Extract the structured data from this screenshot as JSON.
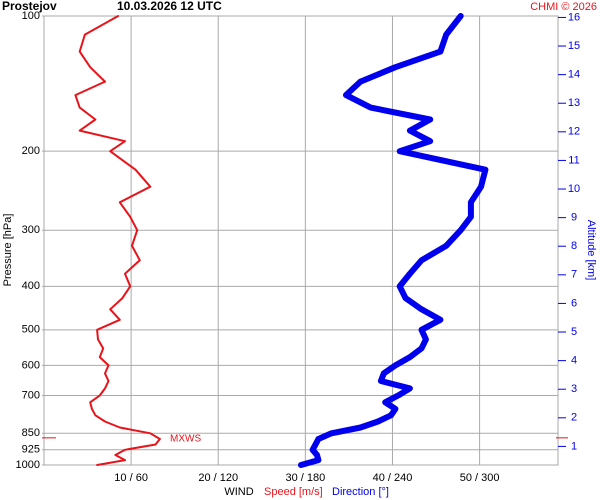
{
  "chart_data": {
    "type": "profile",
    "station": "Prostejov",
    "time": "10.03.2026 12 UTC",
    "credit": "CHMI © 2026",
    "ylabel": "Pressure [hPa]",
    "y2label": "Altitude [km]",
    "xlabel": "WIND",
    "ylim": [
      100,
      1000
    ],
    "ylog": true,
    "yticks": [
      100,
      200,
      300,
      400,
      500,
      600,
      700,
      850,
      925,
      1000
    ],
    "y2lim": [
      0.35,
      16.05
    ],
    "y2ticks": [
      1,
      2,
      3,
      4,
      5,
      6,
      7,
      8,
      9,
      10,
      11,
      12,
      13,
      14,
      15,
      16
    ],
    "xlim": [
      0,
      59
    ],
    "xticks": [
      {
        "value": 10,
        "label": "10 / 60"
      },
      {
        "value": 20,
        "label": "20 / 120"
      },
      {
        "value": 30,
        "label": "30 / 180"
      },
      {
        "value": 40,
        "label": "40 / 240"
      },
      {
        "value": 50,
        "label": "50 / 300"
      }
    ],
    "levels": [
      1000,
      975,
      950,
      925,
      900,
      875,
      850,
      825,
      800,
      775,
      750,
      725,
      700,
      675,
      650,
      625,
      600,
      575,
      550,
      525,
      500,
      475,
      450,
      425,
      400,
      375,
      350,
      325,
      300,
      280,
      260,
      240,
      220,
      200,
      190,
      180,
      170,
      160,
      150,
      140,
      130,
      120,
      110,
      100
    ],
    "series": [
      {
        "name": "Speed [m/s]",
        "color": "#e8141b",
        "scale": 1,
        "values": [
          6.1,
          9.3,
          8.2,
          9.3,
          12.8,
          13.3,
          12.2,
          8.7,
          7.0,
          5.9,
          5.5,
          5.3,
          6.4,
          7.0,
          7.4,
          7.0,
          7.4,
          6.4,
          6.8,
          6.2,
          6.1,
          8.7,
          7.6,
          9.0,
          9.9,
          9.3,
          11.0,
          10.1,
          10.7,
          9.9,
          8.7,
          12.2,
          10.5,
          7.6,
          9.3,
          4.1,
          5.9,
          4.1,
          3.6,
          7.0,
          5.3,
          4.1,
          4.7,
          8.5
        ]
      },
      {
        "name": "Direction [°]",
        "color": "#0000ee",
        "scale": 6,
        "values": [
          177,
          189,
          188,
          185,
          187,
          189,
          198,
          218,
          230,
          239,
          242,
          235,
          244,
          252,
          232,
          234,
          242,
          252,
          260,
          263,
          260,
          273,
          260,
          249,
          245,
          252,
          260,
          277,
          287,
          294,
          294,
          301,
          304,
          245,
          266,
          252,
          266,
          225,
          208,
          218,
          242,
          273,
          277,
          287
        ]
      }
    ],
    "mxws": {
      "label": "MXWS",
      "pressure": 870
    }
  }
}
